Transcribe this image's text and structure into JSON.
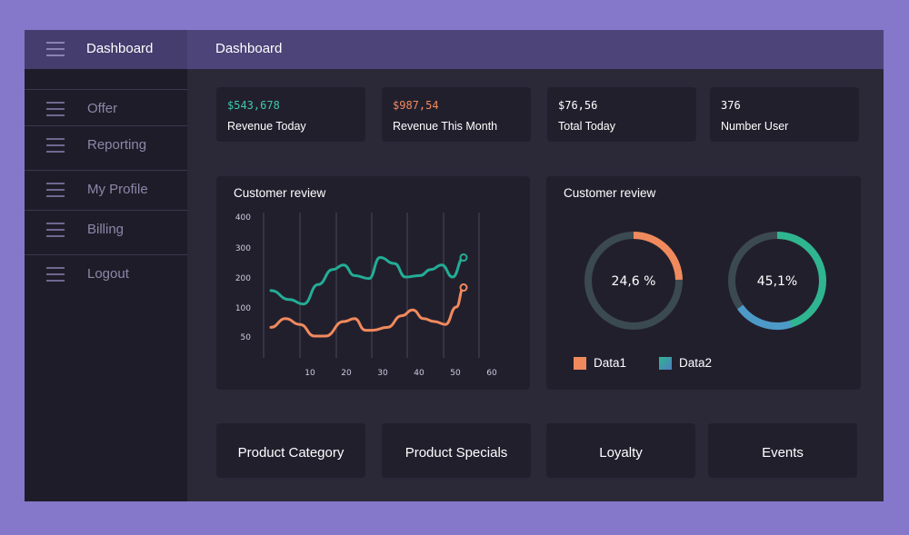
{
  "app": {
    "title": "Dashboard"
  },
  "header": {
    "page_title": "Dashboard"
  },
  "sidebar": {
    "items": [
      {
        "label": "Offer",
        "icon": "menu-icon"
      },
      {
        "label": "Reporting",
        "icon": "menu-icon"
      },
      {
        "label": "My Profile",
        "icon": "menu-icon"
      },
      {
        "label": "Billing",
        "icon": "menu-icon"
      },
      {
        "label": "Logout",
        "icon": "menu-icon"
      }
    ]
  },
  "stats": [
    {
      "value": "$543,678",
      "label": "Revenue Today",
      "color": "#3cc8ad"
    },
    {
      "value": "$987,54",
      "label": "Revenue This Month",
      "color": "#f08a5d"
    },
    {
      "value": "$76,56",
      "label": "Total Today",
      "color": "#ffffff"
    },
    {
      "value": "376",
      "label": "Number User",
      "color": "#ffffff"
    }
  ],
  "line_card": {
    "title": "Customer review"
  },
  "donut_card": {
    "title": "Customer review"
  },
  "legend": [
    {
      "label": "Data1",
      "color": "#f08a5d"
    },
    {
      "label": "Data2",
      "color": "#3aa8b5"
    }
  ],
  "bottom": [
    {
      "label": "Product Category"
    },
    {
      "label": "Product Specials"
    },
    {
      "label": "Loyalty"
    },
    {
      "label": "Events"
    }
  ],
  "chart_data": [
    {
      "type": "line",
      "title": "Customer review",
      "xlabel": "",
      "ylabel": "",
      "x_ticks": [
        10,
        20,
        30,
        40,
        50,
        60
      ],
      "y_ticks": [
        50,
        100,
        200,
        300,
        400
      ],
      "series": [
        {
          "color": "#23ad96",
          "points": [
            [
              2,
              155
            ],
            [
              7,
              125
            ],
            [
              11,
              110
            ],
            [
              15,
              175
            ],
            [
              19,
              225
            ],
            [
              22,
              240
            ],
            [
              25,
              205
            ],
            [
              29,
              195
            ],
            [
              32,
              265
            ],
            [
              36,
              245
            ],
            [
              39,
              200
            ],
            [
              43,
              205
            ],
            [
              46,
              225
            ],
            [
              49,
              240
            ],
            [
              52,
              200
            ],
            [
              55,
              265
            ]
          ]
        },
        {
          "color": "#f08a5d",
          "points": [
            [
              2,
              65
            ],
            [
              6,
              80
            ],
            [
              10,
              70
            ],
            [
              14,
              50
            ],
            [
              17,
              50
            ],
            [
              22,
              75
            ],
            [
              25,
              80
            ],
            [
              28,
              60
            ],
            [
              30,
              60
            ],
            [
              34,
              65
            ],
            [
              38,
              85
            ],
            [
              41,
              95
            ],
            [
              44,
              80
            ],
            [
              47,
              75
            ],
            [
              50,
              70
            ],
            [
              53,
              100
            ],
            [
              55,
              165
            ]
          ]
        }
      ]
    },
    {
      "type": "pie",
      "values": [
        24.6,
        75.4
      ],
      "center_label": "24,6 %",
      "colors": [
        "#f08a5d",
        "#3b4a50"
      ]
    },
    {
      "type": "pie",
      "values": [
        45.1,
        54.9
      ],
      "center_label": "45,1%",
      "colors": [
        "#2fb58f",
        "#3b4a50"
      ]
    }
  ]
}
